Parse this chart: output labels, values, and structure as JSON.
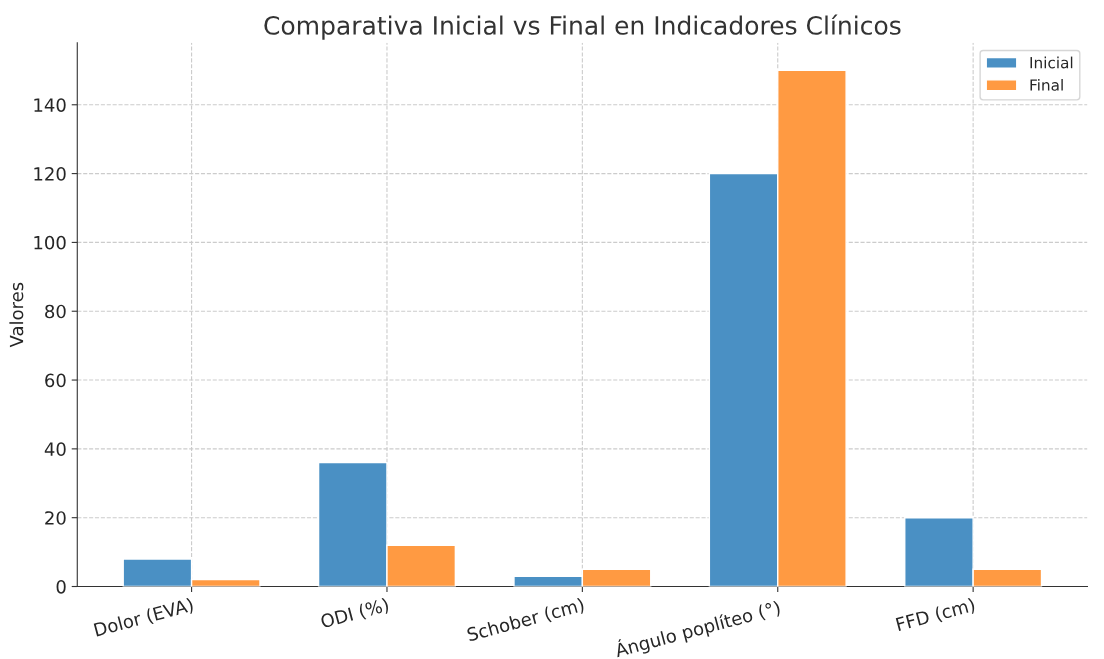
{
  "chart_data": {
    "type": "bar",
    "title": "Comparativa Inicial vs Final en Indicadores Clínicos",
    "ylabel": "Valores",
    "categories": [
      "Dolor (EVA)",
      "ODI (%)",
      "Schober (cm)",
      "Ángulo poplíteo (°)",
      "FFD (cm)"
    ],
    "series": [
      {
        "name": "Inicial",
        "color": "#4a90c4",
        "values": [
          8,
          36,
          3,
          120,
          20
        ]
      },
      {
        "name": "Final",
        "color": "#ff9a42",
        "values": [
          2,
          12,
          5,
          150,
          5
        ]
      }
    ],
    "ylim": [
      0,
      158
    ],
    "yticks": [
      0,
      20,
      40,
      60,
      80,
      100,
      120,
      140
    ],
    "grid": true,
    "legend": "top right"
  }
}
